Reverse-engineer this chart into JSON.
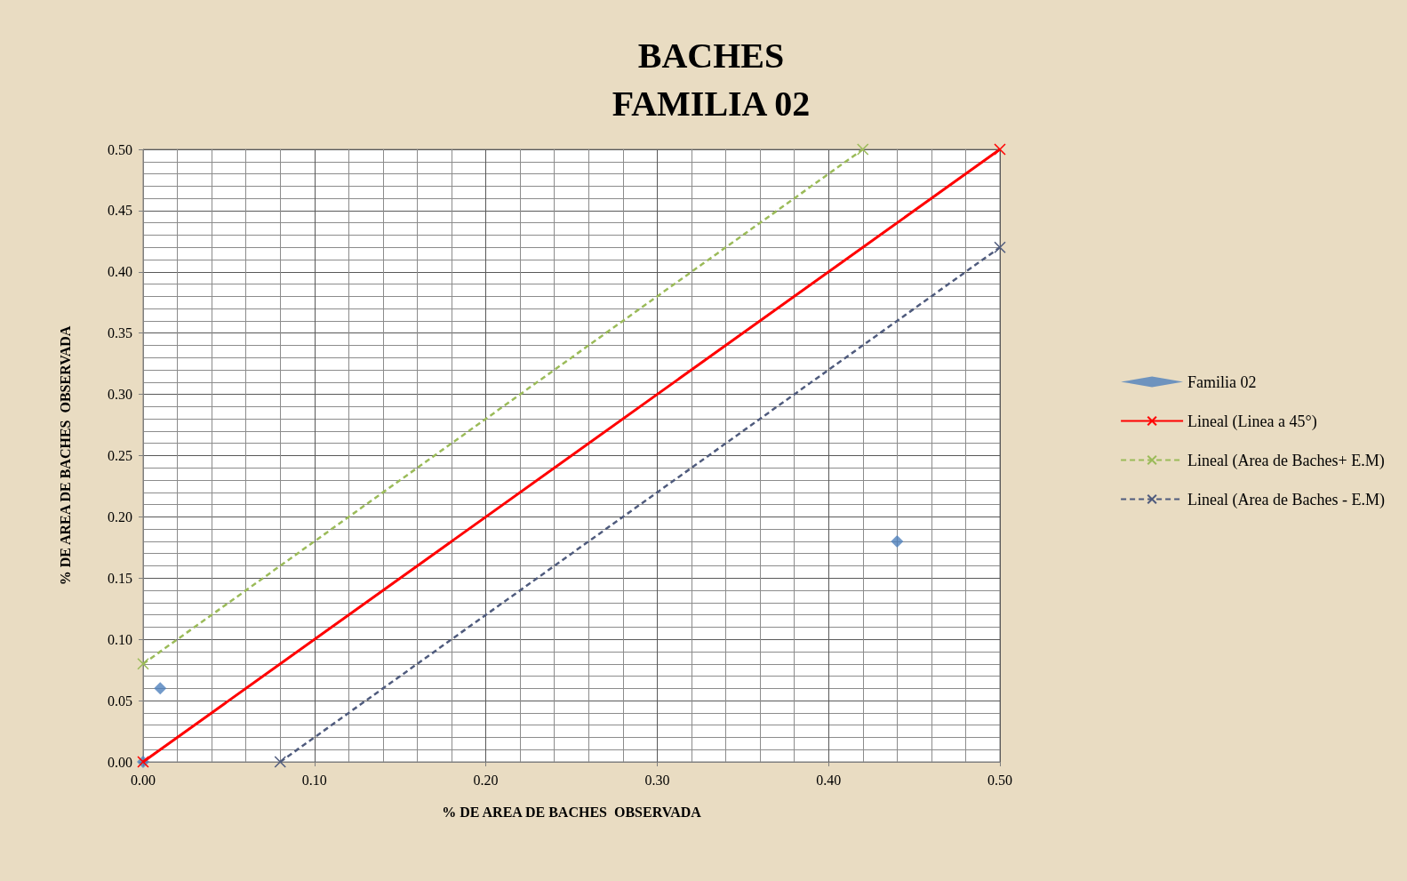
{
  "chart_data": {
    "type": "scatter",
    "title": "BACHES\nFAMILIA 02",
    "xlabel": "% DE AREA DE BACHES  OBSERVADA",
    "ylabel": "% DE AREA DE BACHES  OBSERVADA",
    "xlim": [
      0,
      0.5
    ],
    "ylim": [
      0,
      0.5
    ],
    "xticks": [
      {
        "value": 0,
        "label": "0.00"
      },
      {
        "value": 0.1,
        "label": "0.10"
      },
      {
        "value": 0.2,
        "label": "0.20"
      },
      {
        "value": 0.3,
        "label": "0.30"
      },
      {
        "value": 0.4,
        "label": "0.40"
      },
      {
        "value": 0.5,
        "label": "0.50"
      }
    ],
    "yticks": [
      {
        "value": 0,
        "label": "0.00"
      },
      {
        "value": 0.05,
        "label": "0.05"
      },
      {
        "value": 0.1,
        "label": "0.10"
      },
      {
        "value": 0.15,
        "label": "0.15"
      },
      {
        "value": 0.2,
        "label": "0.20"
      },
      {
        "value": 0.25,
        "label": "0.25"
      },
      {
        "value": 0.3,
        "label": "0.30"
      },
      {
        "value": 0.35,
        "label": "0.35"
      },
      {
        "value": 0.4,
        "label": "0.40"
      },
      {
        "value": 0.45,
        "label": "0.45"
      },
      {
        "value": 0.5,
        "label": "0.50"
      }
    ],
    "grid": true,
    "legend": "right",
    "series": [
      {
        "name": "Familia 02",
        "color": "#4f81bd",
        "marker": "diamond",
        "x": [
          0,
          0.01,
          0.44
        ],
        "values": [
          0,
          0.06,
          0.18
        ]
      },
      {
        "name": "Lineal (Linea a 45°)",
        "type": "line",
        "color": "#ff0000",
        "marker": "cross",
        "line_style": "solid",
        "x": [
          0,
          0.5
        ],
        "values": [
          0,
          0.5
        ]
      },
      {
        "name": "Lineal (Area de Baches+ E.M)",
        "type": "line",
        "color": "#9bbb59",
        "marker": "cross",
        "line_style": "dashed",
        "x": [
          0,
          0.42
        ],
        "values": [
          0.08,
          0.5
        ]
      },
      {
        "name": "Lineal (Area de Baches - E.M)",
        "type": "line",
        "color": "#4f5b7d",
        "marker": "cross",
        "line_style": "dashed",
        "x": [
          0.08,
          0.5
        ],
        "values": [
          0,
          0.42
        ]
      }
    ]
  }
}
